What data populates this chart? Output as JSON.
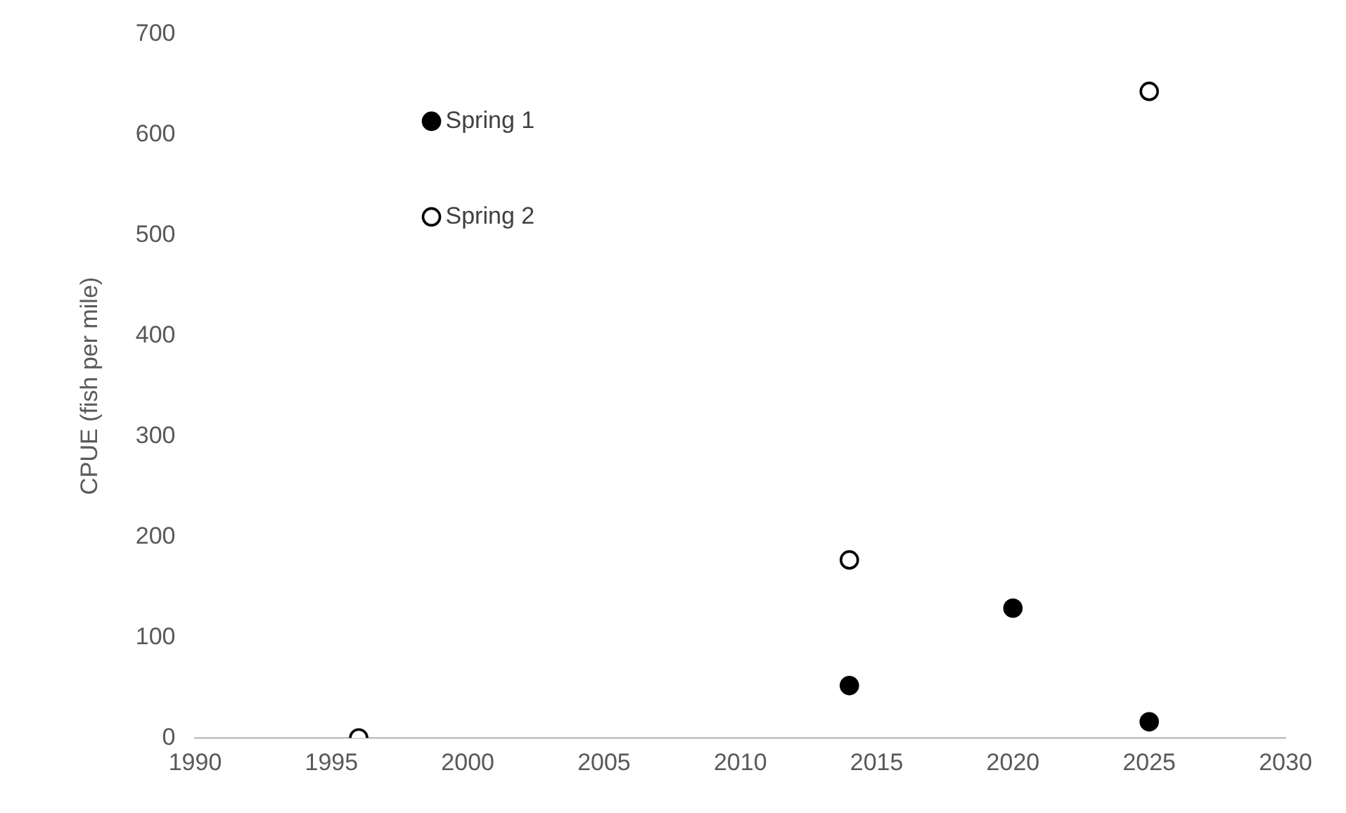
{
  "chart_data": {
    "type": "scatter",
    "ylabel": "CPUE (fish per mile)",
    "xlim": [
      1990,
      2030
    ],
    "xticks": [
      1990,
      1995,
      2000,
      2005,
      2010,
      2015,
      2020,
      2025,
      2030
    ],
    "ylim": [
      0,
      700
    ],
    "yticks": [
      0,
      100,
      200,
      300,
      400,
      500,
      600,
      700
    ],
    "grid": false,
    "legend": "top left",
    "marker": "circle",
    "series": [
      {
        "name": "Spring 1",
        "color": "#000000",
        "x": [
          2014,
          2020,
          2025
        ],
        "values": [
          52,
          129,
          16
        ]
      },
      {
        "name": "Spring 2",
        "color": "#ffffff",
        "x": [
          1996,
          2014,
          2025
        ],
        "values": [
          0,
          177,
          643
        ]
      }
    ]
  }
}
